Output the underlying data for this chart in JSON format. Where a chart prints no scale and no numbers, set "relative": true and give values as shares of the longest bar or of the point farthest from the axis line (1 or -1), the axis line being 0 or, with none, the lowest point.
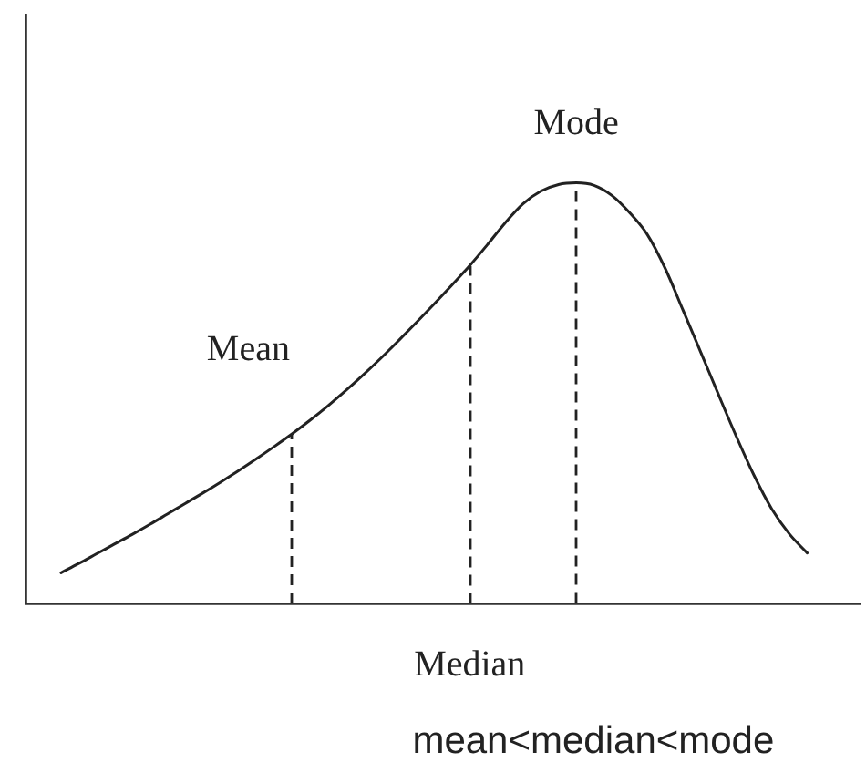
{
  "chart_data": {
    "type": "line",
    "relative": true,
    "tick_labels": false,
    "marker": "none",
    "categories": [
      null,
      null,
      null,
      null,
      null,
      null,
      null,
      null,
      null,
      null,
      null,
      null,
      null,
      null,
      null,
      null,
      null,
      null,
      null,
      null,
      null,
      null,
      null,
      null,
      null,
      null,
      null,
      null,
      null,
      null,
      null,
      null,
      null,
      null,
      null,
      null,
      null,
      null,
      null,
      null,
      null,
      null,
      null,
      null,
      null,
      null,
      null,
      null
    ],
    "series": [
      {
        "color": "#222222",
        "values": [
          null,
          null,
          0.073,
          0.095,
          0.118,
          0.141,
          0.164,
          0.188,
          0.213,
          0.238,
          0.263,
          0.289,
          0.316,
          0.344,
          0.373,
          0.403,
          0.435,
          0.469,
          0.505,
          0.543,
          0.583,
          0.625,
          0.668,
          0.712,
          0.757,
          0.803,
          0.853,
          0.905,
          0.95,
          0.98,
          0.996,
          1,
          0.994,
          0.97,
          0.929,
          0.877,
          0.797,
          0.698,
          0.598,
          0.497,
          0.398,
          0.305,
          0.225,
          0.165,
          0.12,
          null,
          null,
          null
        ]
      }
    ],
    "annotations": [
      "Mean",
      "Median",
      "Mode",
      "mean<median<mode"
    ]
  }
}
